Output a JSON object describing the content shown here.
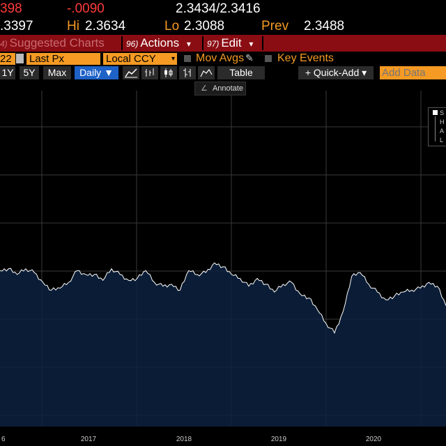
{
  "quote": {
    "last_partial": "398",
    "change": "-.0090",
    "bid_ask": "2.3434/2.3416",
    "open_partial": ".3397",
    "hi_label": "Hi",
    "hi_value": "2.3634",
    "lo_label": "Lo",
    "lo_value": "2.3088",
    "prev_label": "Prev",
    "prev_value": "2.3488"
  },
  "menubar": {
    "suggested": {
      "num": "4)",
      "label": "Suggested Charts"
    },
    "actions": {
      "num": "96)",
      "label": "Actions",
      "arrow": "▾"
    },
    "edit": {
      "num": "97)",
      "label": "Edit",
      "arrow": "▾"
    }
  },
  "settings": {
    "date_partial": "22",
    "field": "Last Px",
    "currency": "Local CCY",
    "mov_avgs": "Mov Avgs",
    "key_events": "Key Events"
  },
  "toolbar": {
    "r_1y": "1Y",
    "r_5y": "5Y",
    "r_max": "Max",
    "period": "Daily ▼",
    "table": "Table",
    "quick_add": "+ Quick-Add ▾",
    "add_data_placeholder": "Add Data"
  },
  "tooltip": {
    "annotate": "Annotate"
  },
  "legend": {
    "l1": "S",
    "l2": "H",
    "l3": "A",
    "l4": "L"
  },
  "colors": {
    "area_fill": "#0d2240",
    "line": "#ffffff",
    "grid": "#3a3a3a",
    "menubar": "#8b0d14",
    "accent_orange": "#f59a23",
    "quote_red": "#ff3b3b"
  },
  "chart_data": {
    "type": "area",
    "x_tick_labels": [
      "6",
      "2017",
      "2018",
      "2019",
      "2020"
    ],
    "series": [
      {
        "x": [
          "2016-07",
          "2016-08",
          "2016-09",
          "2016-10",
          "2016-11",
          "2016-12",
          "2017-01",
          "2017-02",
          "2017-03",
          "2017-04",
          "2017-05",
          "2017-06",
          "2017-07",
          "2017-08",
          "2017-09",
          "2017-10",
          "2017-11",
          "2017-12",
          "2018-01",
          "2018-02",
          "2018-03",
          "2018-04",
          "2018-05",
          "2018-06",
          "2018-07",
          "2018-08",
          "2018-09",
          "2018-10",
          "2018-11",
          "2018-12",
          "2019-01",
          "2019-02",
          "2019-03",
          "2019-04",
          "2019-05",
          "2019-06",
          "2019-07",
          "2019-08",
          "2019-09",
          "2019-10",
          "2019-11",
          "2019-12",
          "2020-01",
          "2020-02",
          "2020-03",
          "2020-04",
          "2020-05",
          "2020-06",
          "2020-07",
          "2020-08",
          "2020-09",
          "2020-10",
          "2020-11"
        ],
        "values": [
          0.8,
          0.81,
          0.78,
          0.81,
          0.79,
          0.74,
          0.7,
          0.71,
          0.74,
          0.8,
          0.78,
          0.78,
          0.75,
          0.81,
          0.78,
          0.75,
          0.76,
          0.8,
          0.74,
          0.72,
          0.73,
          0.7,
          0.8,
          0.78,
          0.79,
          0.84,
          0.82,
          0.78,
          0.76,
          0.72,
          0.76,
          0.73,
          0.69,
          0.73,
          0.74,
          0.68,
          0.66,
          0.6,
          0.53,
          0.48,
          0.59,
          0.77,
          0.79,
          0.73,
          0.69,
          0.65,
          0.67,
          0.69,
          0.7,
          0.71,
          0.74,
          0.72,
          0.62
        ]
      }
    ]
  }
}
